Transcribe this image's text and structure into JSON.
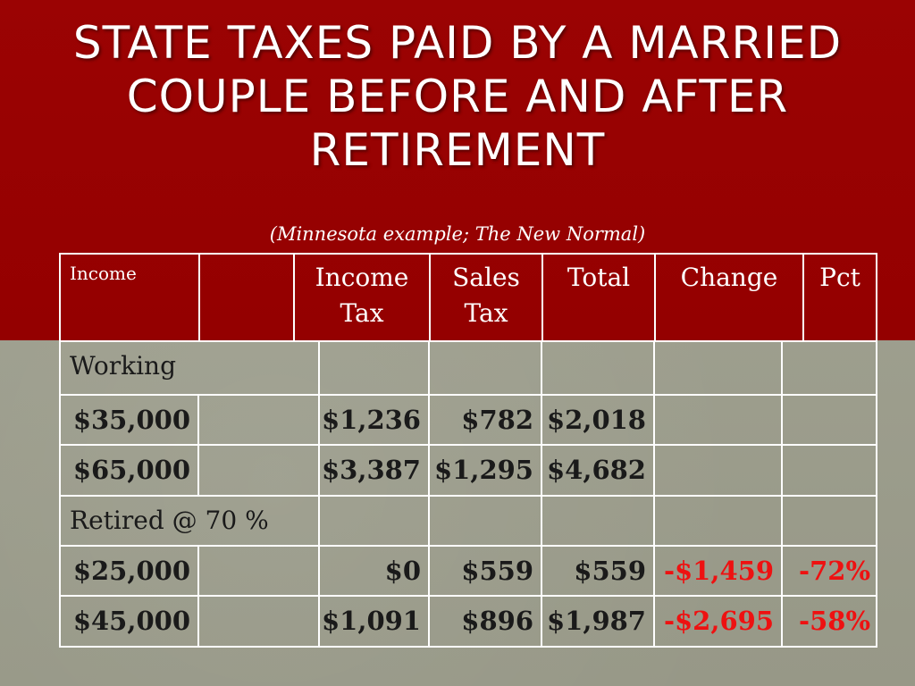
{
  "slide": {
    "title": "State Taxes Paid by a Married Couple Before and After Retirement",
    "subtitle": "(Minnesota example; The New Normal)"
  },
  "table": {
    "headers": {
      "income": "Income",
      "blank": "",
      "income_tax": "Income Tax",
      "sales_tax": "Sales Tax",
      "total": "Total",
      "change": "Change",
      "pct": "Pct"
    },
    "sections": [
      {
        "label": "Working",
        "rows": [
          {
            "income": "$35,000",
            "income_tax": "$1,236",
            "sales_tax": "$782",
            "total": "$2,018",
            "change": "",
            "pct": ""
          },
          {
            "income": "$65,000",
            "income_tax": "$3,387",
            "sales_tax": "$1,295",
            "total": "$4,682",
            "change": "",
            "pct": ""
          }
        ]
      },
      {
        "label": "Retired @ 70 %",
        "rows": [
          {
            "income": "$25,000",
            "income_tax": "$0",
            "sales_tax": "$559",
            "total": "$559",
            "change": "-$1,459",
            "pct": "-72%"
          },
          {
            "income": "$45,000",
            "income_tax": "$1,091",
            "sales_tax": "$896",
            "total": "$1,987",
            "change": "-$2,695",
            "pct": "-58%"
          }
        ]
      }
    ]
  },
  "colors": {
    "title_band": "#990000",
    "negative_value": "#ee1111",
    "body_background": "#9c9d8c"
  }
}
